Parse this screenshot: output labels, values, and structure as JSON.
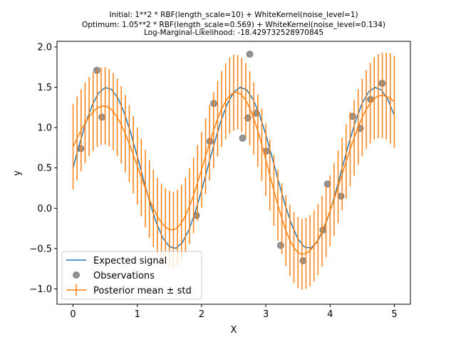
{
  "chart_data": {
    "type": "line",
    "title_lines": [
      "Initial: 1**2 * RBF(length_scale=10) + WhiteKernel(noise_level=1)",
      "Optimum: 1.05**2 * RBF(length_scale=0.569) + WhiteKernel(noise_level=0.134)",
      "Log-Marginal-Likelihood: -18.429732528970845"
    ],
    "xlabel": "X",
    "ylabel": "y",
    "xlim": [
      -0.25,
      5.25
    ],
    "ylim": [
      -1.19,
      2.07
    ],
    "xticks": [
      "0",
      "1",
      "2",
      "3",
      "4",
      "5"
    ],
    "yticks": [
      "−1.0",
      "−0.5",
      "0.0",
      "0.5",
      "1.0",
      "1.5",
      "2.0"
    ],
    "xtick_values": [
      0,
      1,
      2,
      3,
      4,
      5
    ],
    "ytick_values": [
      -1.0,
      -0.5,
      0.0,
      0.5,
      1.0,
      1.5,
      2.0
    ],
    "grid": false,
    "legend_placement": "lower-left",
    "series": [
      {
        "name": "Expected signal",
        "type": "line",
        "color": "#1f77b4",
        "x_start": 0,
        "x_step": 0.1,
        "y": [
          0.5,
          0.796,
          1.065,
          1.283,
          1.432,
          1.497,
          1.474,
          1.363,
          1.175,
          0.927,
          0.641,
          0.342,
          0.057,
          -0.188,
          -0.372,
          -0.478,
          -0.496,
          -0.426,
          -0.273,
          -0.051,
          0.221,
          0.517,
          0.812,
          1.078,
          1.294,
          1.438,
          1.499,
          1.47,
          1.355,
          1.163,
          0.912,
          0.625,
          0.326,
          0.043,
          -0.2,
          -0.38,
          -0.481,
          -0.495,
          -0.419,
          -0.262,
          -0.037,
          0.236,
          0.534,
          0.828,
          1.092,
          1.304,
          1.444,
          1.499,
          1.466,
          1.346,
          1.15
        ]
      },
      {
        "name": "Observations",
        "type": "scatter",
        "color": "#808080",
        "points": [
          [
            0.12,
            0.74
          ],
          [
            0.37,
            1.71
          ],
          [
            0.45,
            1.13
          ],
          [
            1.92,
            -0.09
          ],
          [
            2.13,
            0.83
          ],
          [
            2.19,
            1.3
          ],
          [
            2.64,
            0.87
          ],
          [
            2.72,
            1.12
          ],
          [
            2.75,
            1.91
          ],
          [
            2.85,
            1.18
          ],
          [
            3.01,
            0.71
          ],
          [
            3.23,
            -0.46
          ],
          [
            3.58,
            -0.65
          ],
          [
            3.89,
            -0.27
          ],
          [
            3.96,
            0.3
          ],
          [
            4.17,
            0.15
          ],
          [
            4.35,
            1.14
          ],
          [
            4.47,
            0.99
          ],
          [
            4.63,
            1.35
          ],
          [
            4.81,
            1.55
          ]
        ]
      },
      {
        "name": "Posterior mean ± std",
        "type": "errorbar",
        "color": "#ff7f0e",
        "x_start": 0,
        "x_step": 0.0625,
        "mean": [
          0.76,
          0.867,
          0.967,
          1.058,
          1.136,
          1.197,
          1.241,
          1.265,
          1.269,
          1.247,
          1.2,
          1.128,
          1.036,
          0.925,
          0.8,
          0.664,
          0.523,
          0.38,
          0.243,
          0.113,
          -0.002,
          -0.102,
          -0.179,
          -0.234,
          -0.264,
          -0.268,
          -0.24,
          -0.18,
          -0.09,
          0.025,
          0.161,
          0.315,
          0.477,
          0.645,
          0.811,
          0.967,
          1.11,
          1.232,
          1.327,
          1.396,
          1.433,
          1.438,
          1.406,
          1.34,
          1.241,
          1.112,
          0.96,
          0.787,
          0.602,
          0.411,
          0.222,
          0.039,
          -0.128,
          -0.276,
          -0.397,
          -0.488,
          -0.548,
          -0.57,
          -0.56,
          -0.526,
          -0.467,
          -0.387,
          -0.286,
          -0.166,
          -0.032,
          0.112,
          0.265,
          0.422,
          0.579,
          0.731,
          0.874,
          1.008,
          1.126,
          1.225,
          1.303,
          1.361,
          1.392,
          1.4,
          1.389,
          1.361,
          1.32
        ],
        "std": [
          0.53,
          0.52,
          0.51,
          0.5,
          0.49,
          0.49,
          0.48,
          0.48,
          0.48,
          0.48,
          0.48,
          0.48,
          0.48,
          0.48,
          0.48,
          0.48,
          0.48,
          0.48,
          0.48,
          0.48,
          0.48,
          0.48,
          0.48,
          0.48,
          0.48,
          0.47,
          0.47,
          0.47,
          0.47,
          0.47,
          0.47,
          0.47,
          0.47,
          0.47,
          0.47,
          0.47,
          0.47,
          0.47,
          0.47,
          0.47,
          0.47,
          0.46,
          0.46,
          0.46,
          0.46,
          0.45,
          0.45,
          0.45,
          0.45,
          0.44,
          0.44,
          0.44,
          0.44,
          0.44,
          0.44,
          0.44,
          0.44,
          0.44,
          0.44,
          0.44,
          0.44,
          0.44,
          0.44,
          0.44,
          0.44,
          0.45,
          0.45,
          0.45,
          0.46,
          0.46,
          0.47,
          0.47,
          0.48,
          0.49,
          0.5,
          0.51,
          0.52,
          0.53,
          0.54,
          0.56,
          0.57
        ]
      }
    ]
  }
}
